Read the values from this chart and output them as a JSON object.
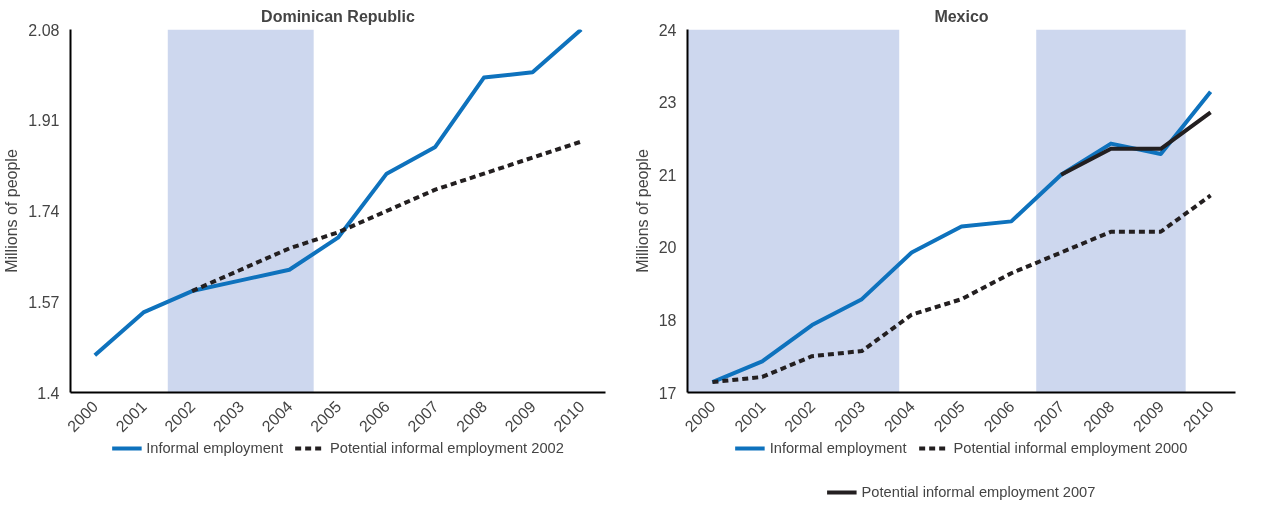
{
  "chart_data": [
    {
      "type": "line",
      "title": "Dominican Republic",
      "ylabel": "Millions of people",
      "x": [
        2000,
        2001,
        2002,
        2003,
        2004,
        2005,
        2006,
        2007,
        2008,
        2009,
        2010
      ],
      "xlim": [
        1999.5,
        2010.5
      ],
      "xticks": [
        2000,
        2001,
        2002,
        2003,
        2004,
        2005,
        2006,
        2007,
        2008,
        2009,
        2010
      ],
      "ylim": [
        1.4,
        2.08
      ],
      "yticks": [
        1.4,
        1.57,
        1.74,
        1.91,
        2.08
      ],
      "grid": false,
      "legend": "bottom",
      "bands": [
        {
          "axis": "x",
          "from": 2001.5,
          "to": 2004.5,
          "color": "#cdd7ee"
        }
      ],
      "series": [
        {
          "name": "Informal employment",
          "color": "#0e72bd",
          "line_style": "solid",
          "values": [
            1.47,
            1.55,
            1.59,
            1.61,
            1.63,
            1.69,
            1.81,
            1.86,
            1.99,
            2.0,
            2.08
          ]
        },
        {
          "name": "Potential informal employment 2002",
          "color": "#231f20",
          "line_style": "dashed",
          "values": [
            null,
            null,
            1.59,
            1.63,
            1.67,
            1.7,
            1.74,
            1.78,
            1.81,
            1.84,
            1.87
          ]
        }
      ]
    },
    {
      "type": "line",
      "title": "Mexico",
      "ylabel": "Millions of people",
      "x": [
        2000,
        2001,
        2002,
        2003,
        2004,
        2005,
        2006,
        2007,
        2008,
        2009,
        2010
      ],
      "xlim": [
        1999.5,
        2010.5
      ],
      "xticks": [
        2000,
        2001,
        2002,
        2003,
        2004,
        2005,
        2006,
        2007,
        2008,
        2009,
        2010
      ],
      "ylim": [
        17,
        24
      ],
      "yticks": [
        17,
        {
          "value": 18.4,
          "label": "18"
        },
        {
          "value": 19.8,
          "label": "20"
        },
        {
          "value": 21.2,
          "label": "21"
        },
        {
          "value": 22.6,
          "label": "23"
        },
        24
      ],
      "grid": false,
      "legend": "bottom",
      "bands": [
        {
          "axis": "x",
          "from": 1999.5,
          "to": 2003.75,
          "color": "#cdd7ee"
        },
        {
          "axis": "x",
          "from": 2006.5,
          "to": 2009.5,
          "color": "#cdd7ee"
        }
      ],
      "series": [
        {
          "name": "Informal employment",
          "color": "#0e72bd",
          "line_style": "solid",
          "values": [
            17.2,
            17.6,
            18.3,
            18.8,
            19.7,
            20.2,
            20.3,
            21.2,
            21.8,
            21.6,
            22.8
          ]
        },
        {
          "name": "Potential informal employment 2000",
          "color": "#231f20",
          "line_style": "dashed",
          "values": [
            17.2,
            17.3,
            17.7,
            17.8,
            18.5,
            18.8,
            19.3,
            19.7,
            20.1,
            20.1,
            20.8
          ]
        },
        {
          "name": "Potential informal employment 2007",
          "color": "#231f20",
          "line_style": "solid",
          "values": [
            null,
            null,
            null,
            null,
            null,
            null,
            null,
            21.2,
            21.7,
            21.7,
            22.4
          ]
        }
      ]
    }
  ]
}
